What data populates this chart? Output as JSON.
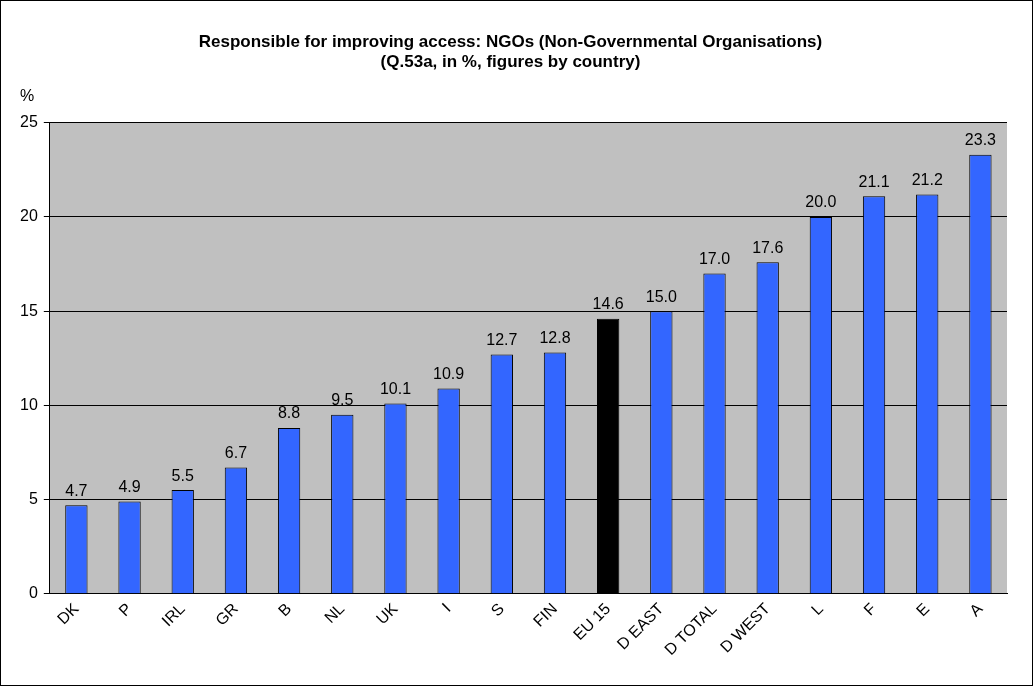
{
  "chart_data": {
    "type": "bar",
    "title": "Responsible for improving access: NGOs (Non-Governmental Organisations) (Q.53a, in %, figures by country)",
    "ylabel": "%",
    "categories": [
      "DK",
      "P",
      "IRL",
      "GR",
      "B",
      "NL",
      "UK",
      "I",
      "S",
      "FIN",
      "EU 15",
      "D EAST",
      "D TOTAL",
      "D WEST",
      "L",
      "F",
      "E",
      "A"
    ],
    "values": [
      4.7,
      4.9,
      5.5,
      6.7,
      8.8,
      9.5,
      10.1,
      10.9,
      12.7,
      12.8,
      14.6,
      15.0,
      17.0,
      17.6,
      20.0,
      21.1,
      21.2,
      23.3
    ],
    "value_labels": [
      "4.7",
      "4.9",
      "5.5",
      "6.7",
      "8.8",
      "9.5",
      "10.1",
      "10.9",
      "12.7",
      "12.8",
      "14.6",
      "15.0",
      "17.0",
      "17.6",
      "20.0",
      "21.1",
      "21.2",
      "23.3"
    ],
    "colors": [
      "#3366ff",
      "#3366ff",
      "#3366ff",
      "#3366ff",
      "#3366ff",
      "#3366ff",
      "#3366ff",
      "#3366ff",
      "#3366ff",
      "#3366ff",
      "#000000",
      "#3366ff",
      "#3366ff",
      "#3366ff",
      "#3366ff",
      "#3366ff",
      "#3366ff",
      "#3366ff"
    ],
    "ylim": [
      0,
      25
    ],
    "yticks": [
      0,
      5,
      10,
      15,
      20,
      25
    ],
    "grid": "y",
    "legend": false
  }
}
